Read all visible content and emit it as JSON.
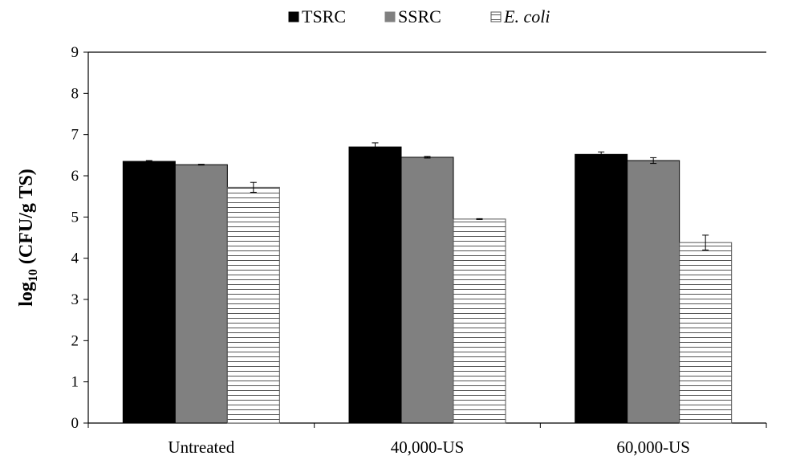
{
  "chart_data": {
    "type": "bar",
    "title": "",
    "xlabel": "",
    "ylabel": {
      "base": "log",
      "subscript": "10",
      "rest": " (CFU/g TS)"
    },
    "ylim": [
      0,
      9
    ],
    "yticks": [
      0,
      1,
      2,
      3,
      4,
      5,
      6,
      7,
      8,
      9
    ],
    "grid": false,
    "legend_position": "top-center",
    "categories": [
      "Untreated",
      "40,000-US",
      "60,000-US"
    ],
    "series": [
      {
        "name": "TSRC",
        "italic": false,
        "fill": "solid",
        "color": "#000000",
        "values": [
          6.35,
          6.7,
          6.52
        ],
        "errors": [
          0.02,
          0.1,
          0.06
        ]
      },
      {
        "name": "SSRC",
        "italic": false,
        "fill": "solid",
        "color": "#808080",
        "values": [
          6.27,
          6.45,
          6.37
        ],
        "errors": [
          0.01,
          0.02,
          0.07
        ]
      },
      {
        "name": "E. coli",
        "italic": true,
        "fill": "horizontal-stripes",
        "color": "#ffffff",
        "values": [
          5.72,
          4.95,
          4.38
        ],
        "errors": [
          0.12,
          0.01,
          0.18
        ]
      }
    ]
  }
}
